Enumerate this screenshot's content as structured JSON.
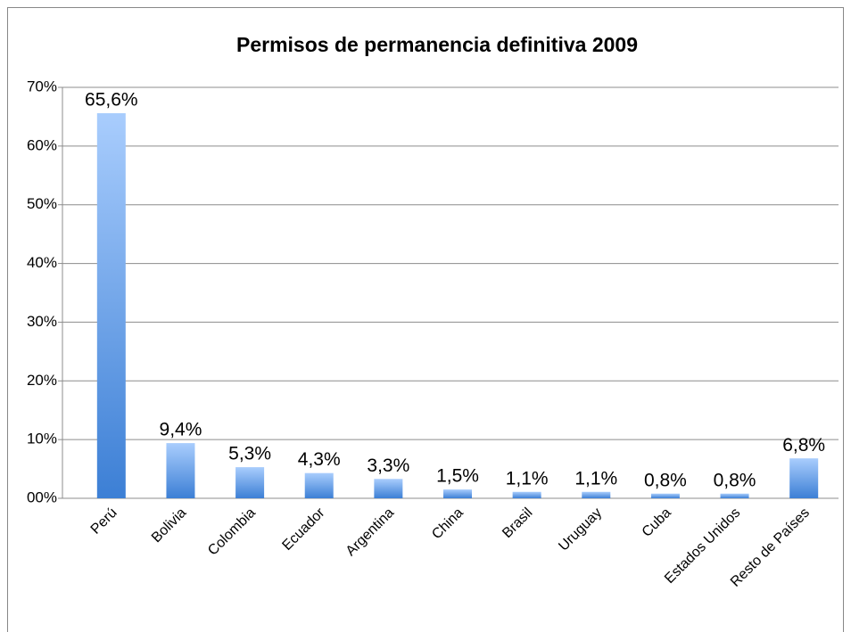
{
  "chart_data": {
    "type": "bar",
    "title": "Permisos de permanencia definitiva 2009",
    "categories": [
      "Perú",
      "Bolivia",
      "Colombia",
      "Ecuador",
      "Argentina",
      "China",
      "Brasil",
      "Uruguay",
      "Cuba",
      "Estados Unidos",
      "Resto de Países"
    ],
    "values": [
      65.6,
      9.4,
      5.3,
      4.3,
      3.3,
      1.5,
      1.1,
      1.1,
      0.8,
      0.8,
      6.8
    ],
    "value_labels": [
      "65,6%",
      "9,4%",
      "5,3%",
      "4,3%",
      "3,3%",
      "1,5%",
      "1,1%",
      "1,1%",
      "0,8%",
      "0,8%",
      "6,8%"
    ],
    "color": [
      "#a9cdfd",
      "#3c7fd5"
    ],
    "ylim": [
      0,
      70
    ],
    "yticks": [
      {
        "value": 0,
        "label": "00%"
      },
      {
        "value": 10,
        "label": "10%"
      },
      {
        "value": 20,
        "label": "20%"
      },
      {
        "value": 30,
        "label": "30%"
      },
      {
        "value": 40,
        "label": "40%"
      },
      {
        "value": 50,
        "label": "50%"
      },
      {
        "value": 60,
        "label": "60%"
      },
      {
        "value": 70,
        "label": "70%"
      }
    ],
    "grid": true
  }
}
